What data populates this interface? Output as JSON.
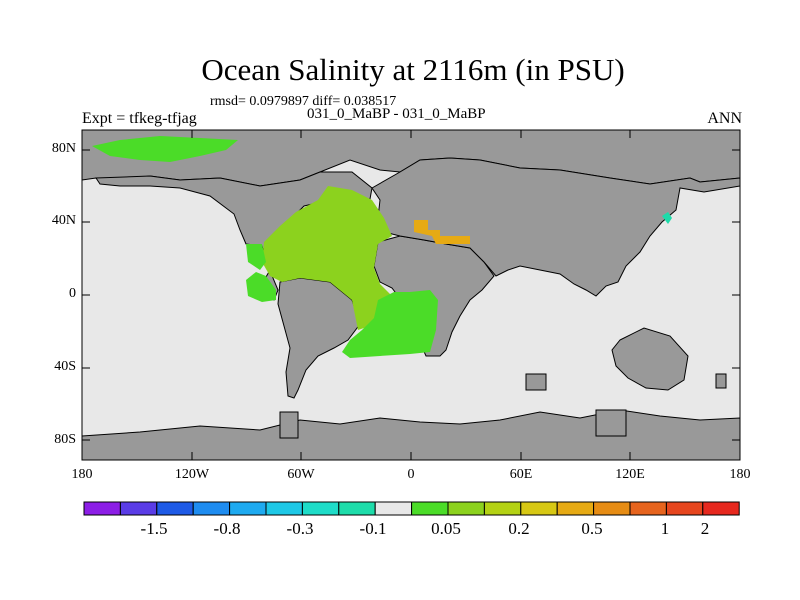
{
  "title": "Ocean Salinity at 2116m (in PSU)",
  "stats": "rmsd= 0.0979897 diff= 0.038517",
  "left_label": "Expt = tfkeg-tfjag",
  "center_label": "031_0_MaBP - 031_0_MaBP",
  "right_label": "ANN",
  "lat_ticks": [
    "80N",
    "40N",
    "0",
    "40S",
    "80S"
  ],
  "lon_ticks": [
    "180",
    "120W",
    "60W",
    "0",
    "60E",
    "120E",
    "180"
  ],
  "colorbar": {
    "colors": [
      "#8c1ee6",
      "#5a3ce6",
      "#1e5ae6",
      "#1e8cf0",
      "#1eaaf0",
      "#1ec8e6",
      "#1edcc8",
      "#1edcaa",
      "#e8e8e8",
      "#4bdc28",
      "#8cd21e",
      "#b4d214",
      "#d7c814",
      "#e6aa14",
      "#e68c14",
      "#e6641e",
      "#e6461e",
      "#e6281e"
    ],
    "labels": [
      "-1.5",
      "-0.8",
      "-0.3",
      "-0.1",
      "0.05",
      "0.2",
      "0.5",
      "1",
      "2"
    ],
    "label_after_box": [
      2,
      4,
      6,
      8,
      10,
      12,
      14,
      16,
      18
    ]
  },
  "legend_colors": {
    "land": "#999999",
    "near_zero": "#e8e8e8",
    "positive_small": "#4bdc28",
    "positive_mid": "#8cd21e",
    "positive_high": "#e6aa14",
    "negative_small": "#1edcaa"
  }
}
